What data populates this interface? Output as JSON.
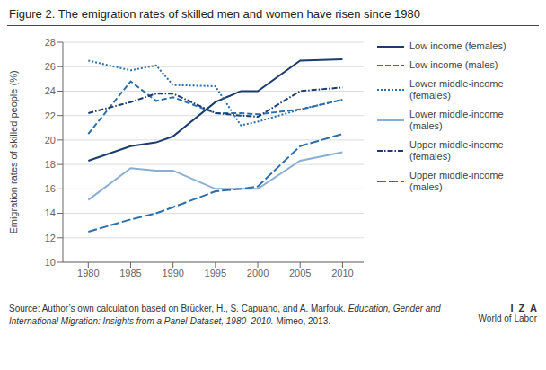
{
  "chart_data": {
    "type": "line",
    "title": "Figure 2. The emigration rates of skilled men and women have risen since 1980",
    "y_label": "Emigration rates of skilled people (%)",
    "x": [
      1980,
      1985,
      1988,
      1990,
      1995,
      1998,
      2000,
      2005,
      2010
    ],
    "series": [
      {
        "name": "Low income (females)",
        "color": "#1a3c6e",
        "line_style": "solid",
        "values": [
          18.3,
          19.5,
          19.8,
          20.3,
          23.1,
          24.0,
          24.0,
          26.5,
          26.6
        ]
      },
      {
        "name": "Low income (males)",
        "color": "#2c6fad",
        "line_style": "dashed",
        "values": [
          20.5,
          24.8,
          23.2,
          23.5,
          22.2,
          22.2,
          22.1,
          22.5,
          23.3
        ]
      },
      {
        "name": "Lower middle-income\n(females)",
        "color": "#2c6fad",
        "line_style": "dotted",
        "values": [
          26.5,
          25.7,
          26.1,
          24.5,
          24.4,
          21.2,
          21.5,
          22.5,
          23.3
        ]
      },
      {
        "name": "Lower middle-income\n(males)",
        "color": "#89afd4",
        "line_style": "solid",
        "values": [
          15.1,
          17.7,
          17.5,
          17.5,
          16.0,
          16.0,
          16.0,
          18.3,
          19.0
        ]
      },
      {
        "name": "Upper middle-income\n(females)",
        "color": "#1a3c6e",
        "line_style": "dashdot",
        "values": [
          22.2,
          23.1,
          23.8,
          23.8,
          22.2,
          22.0,
          21.9,
          24.0,
          24.3
        ]
      },
      {
        "name": "Upper middle-income\n(males)",
        "color": "#2c6fad",
        "line_style": "longdashed",
        "values": [
          12.5,
          13.5,
          14.0,
          14.5,
          15.8,
          16.0,
          16.2,
          19.5,
          20.5
        ]
      }
    ],
    "xlim": [
      1977,
      2012.5
    ],
    "xticks": [
      1980,
      1985,
      1990,
      1995,
      2000,
      2005,
      2010
    ],
    "ylim": [
      10,
      28
    ],
    "yticks": [
      10,
      12,
      14,
      16,
      18,
      20,
      22,
      24,
      26,
      28
    ],
    "grid": true,
    "legend": "right",
    "annotations": [
      "Source: Author’s own calculation based on Brücker, H., S. Capuano, and A. Marfouk.",
      "Education, Gender and International Migration: Insights from a Panel-Dataset, 1980–2010.",
      "Mimeo, 2013.",
      "I  Z  A",
      "World of Labor"
    ]
  }
}
